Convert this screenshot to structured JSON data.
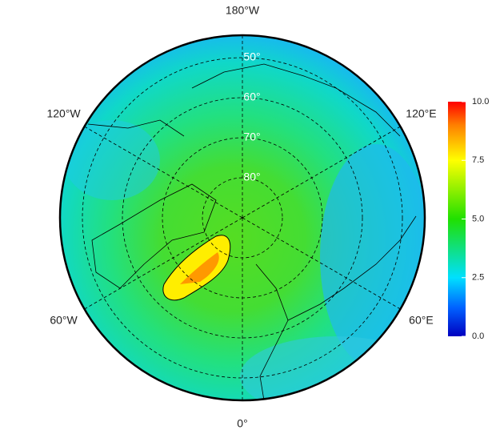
{
  "map": {
    "longitude_labels": [
      {
        "value": -180,
        "label": "180°W"
      },
      {
        "value": -120,
        "label": "120°W"
      },
      {
        "value": -60,
        "label": "60°W"
      },
      {
        "value": 0,
        "label": "0°"
      },
      {
        "value": 60,
        "label": "60°E"
      },
      {
        "value": 120,
        "label": "120°E"
      }
    ],
    "latitude_labels": [
      {
        "value": 50,
        "label": "50°"
      },
      {
        "value": 60,
        "label": "60°"
      },
      {
        "value": 70,
        "label": "70°"
      },
      {
        "value": 80,
        "label": "80°"
      }
    ]
  },
  "colorbar": {
    "lim": [
      0,
      10
    ],
    "ticks": [
      {
        "value": 0,
        "label": "0.0"
      },
      2.5,
      {
        "value": 5,
        "label": "5.0"
      },
      7.5,
      {
        "value": 10,
        "label": "10.0"
      }
    ]
  }
}
